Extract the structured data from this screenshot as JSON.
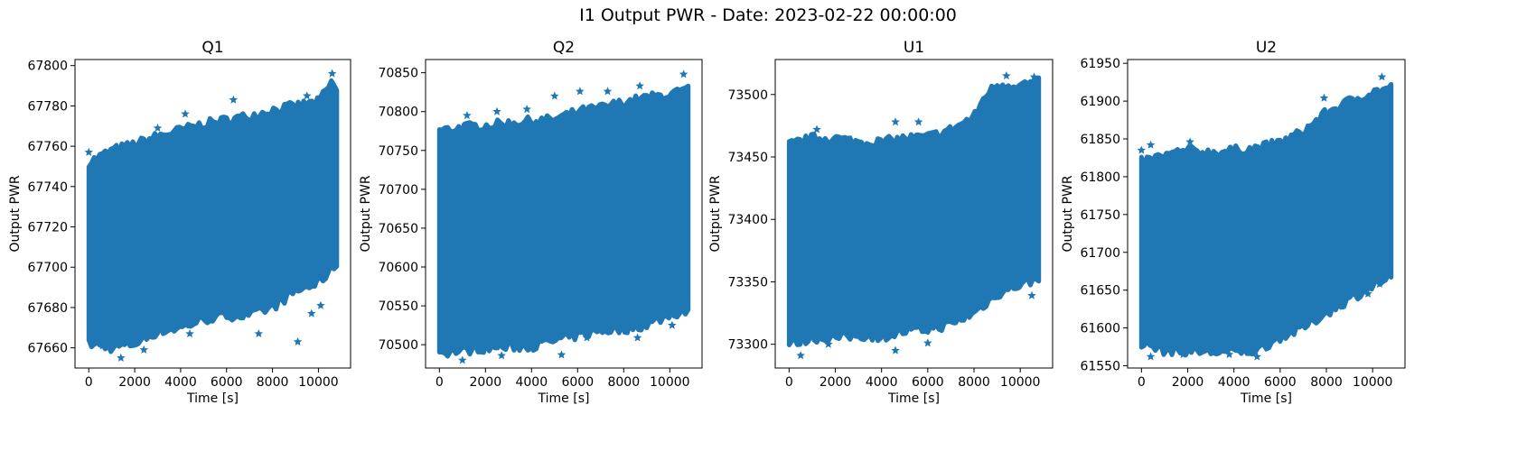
{
  "figure": {
    "title": "I1 Output PWR - Date: 2023-02-22 00:00:00"
  },
  "style": {
    "series_color": "#1f77b4",
    "marker": "star"
  },
  "chart_data": [
    {
      "type": "scatter",
      "title": "Q1",
      "xlabel": "Time [s]",
      "ylabel": "Output PWR",
      "xlim": [
        -600,
        11400
      ],
      "ylim": [
        67650,
        67803
      ],
      "xticks": [
        0,
        2000,
        4000,
        6000,
        8000,
        10000
      ],
      "yticks": [
        67660,
        67680,
        67700,
        67720,
        67740,
        67760,
        67780,
        67800
      ],
      "x_range": [
        0,
        10800
      ],
      "upper_envelope": [
        [
          0,
          67752
        ],
        [
          1000,
          67758
        ],
        [
          2000,
          67761
        ],
        [
          3000,
          67765
        ],
        [
          4000,
          67768
        ],
        [
          5000,
          67771
        ],
        [
          6000,
          67773
        ],
        [
          7000,
          67775
        ],
        [
          8000,
          67778
        ],
        [
          9000,
          67780
        ],
        [
          10000,
          67782
        ],
        [
          10600,
          67792
        ],
        [
          10800,
          67788
        ]
      ],
      "lower_envelope": [
        [
          0,
          67662
        ],
        [
          1000,
          67660
        ],
        [
          2000,
          67662
        ],
        [
          3000,
          67668
        ],
        [
          4000,
          67670
        ],
        [
          5000,
          67674
        ],
        [
          6000,
          67676
        ],
        [
          7000,
          67676
        ],
        [
          8000,
          67680
        ],
        [
          9000,
          67688
        ],
        [
          10000,
          67692
        ],
        [
          10800,
          67702
        ]
      ],
      "outliers": [
        [
          0,
          67757
        ],
        [
          600,
          67661
        ],
        [
          1400,
          67655
        ],
        [
          2400,
          67659
        ],
        [
          3000,
          67769
        ],
        [
          4200,
          67776
        ],
        [
          4400,
          67667
        ],
        [
          6300,
          67783
        ],
        [
          6000,
          67679
        ],
        [
          7400,
          67667
        ],
        [
          9100,
          67663
        ],
        [
          9700,
          67677
        ],
        [
          9500,
          67785
        ],
        [
          10100,
          67681
        ],
        [
          10600,
          67796
        ]
      ]
    },
    {
      "type": "scatter",
      "title": "Q2",
      "xlabel": "Time [s]",
      "ylabel": "Output PWR",
      "xlim": [
        -600,
        11400
      ],
      "ylim": [
        70470,
        70867
      ],
      "xticks": [
        0,
        2000,
        4000,
        6000,
        8000,
        10000
      ],
      "yticks": [
        70500,
        70550,
        70600,
        70650,
        70700,
        70750,
        70800,
        70850
      ],
      "x_range": [
        0,
        10800
      ],
      "upper_envelope": [
        [
          0,
          70775
        ],
        [
          1000,
          70780
        ],
        [
          2000,
          70782
        ],
        [
          3000,
          70785
        ],
        [
          4000,
          70788
        ],
        [
          5000,
          70790
        ],
        [
          6000,
          70800
        ],
        [
          7000,
          70805
        ],
        [
          8000,
          70812
        ],
        [
          9000,
          70818
        ],
        [
          10000,
          70822
        ],
        [
          10800,
          70828
        ]
      ],
      "lower_envelope": [
        [
          0,
          70490
        ],
        [
          1000,
          70492
        ],
        [
          2000,
          70496
        ],
        [
          3000,
          70497
        ],
        [
          4000,
          70498
        ],
        [
          5000,
          70505
        ],
        [
          6000,
          70512
        ],
        [
          7000,
          70518
        ],
        [
          8000,
          70520
        ],
        [
          9000,
          70526
        ],
        [
          10000,
          70538
        ],
        [
          10800,
          70545
        ]
      ],
      "outliers": [
        [
          1200,
          70795
        ],
        [
          2500,
          70800
        ],
        [
          3800,
          70803
        ],
        [
          5000,
          70820
        ],
        [
          6100,
          70826
        ],
        [
          7300,
          70826
        ],
        [
          8700,
          70833
        ],
        [
          10600,
          70848
        ],
        [
          1000,
          70480
        ],
        [
          2700,
          70486
        ],
        [
          5300,
          70487
        ],
        [
          6400,
          70509
        ],
        [
          8600,
          70509
        ],
        [
          10100,
          70525
        ]
      ]
    },
    {
      "type": "scatter",
      "title": "U1",
      "xlabel": "Time [s]",
      "ylabel": "Output PWR",
      "xlim": [
        -600,
        11400
      ],
      "ylim": [
        73281,
        73528
      ],
      "xticks": [
        0,
        2000,
        4000,
        6000,
        8000,
        10000
      ],
      "yticks": [
        73300,
        73350,
        73400,
        73450,
        73500
      ],
      "x_range": [
        0,
        10800
      ],
      "upper_envelope": [
        [
          0,
          73460
        ],
        [
          1000,
          73465
        ],
        [
          2000,
          73465
        ],
        [
          3000,
          73462
        ],
        [
          4000,
          73462
        ],
        [
          5000,
          73465
        ],
        [
          6000,
          73466
        ],
        [
          7000,
          73472
        ],
        [
          8000,
          73482
        ],
        [
          8500,
          73500
        ],
        [
          9000,
          73508
        ],
        [
          10000,
          73508
        ],
        [
          10800,
          73510
        ]
      ],
      "lower_envelope": [
        [
          0,
          73300
        ],
        [
          1000,
          73305
        ],
        [
          2000,
          73305
        ],
        [
          3000,
          73307
        ],
        [
          4000,
          73306
        ],
        [
          5000,
          73310
        ],
        [
          6000,
          73312
        ],
        [
          7000,
          73316
        ],
        [
          8000,
          73325
        ],
        [
          9000,
          73340
        ],
        [
          10000,
          73348
        ],
        [
          10800,
          73352
        ]
      ],
      "outliers": [
        [
          500,
          73291
        ],
        [
          1700,
          73300
        ],
        [
          4600,
          73295
        ],
        [
          6000,
          73301
        ],
        [
          10500,
          73339
        ],
        [
          1200,
          73472
        ],
        [
          4600,
          73478
        ],
        [
          5600,
          73478
        ],
        [
          9400,
          73515
        ],
        [
          10600,
          73514
        ]
      ]
    },
    {
      "type": "scatter",
      "title": "U2",
      "xlabel": "Time [s]",
      "ylabel": "Output PWR",
      "xlim": [
        -600,
        11400
      ],
      "ylim": [
        61547,
        61955
      ],
      "xticks": [
        0,
        2000,
        4000,
        6000,
        8000,
        10000
      ],
      "yticks": [
        61550,
        61600,
        61650,
        61700,
        61750,
        61800,
        61850,
        61900,
        61950
      ],
      "x_range": [
        0,
        10800
      ],
      "upper_envelope": [
        [
          0,
          61820
        ],
        [
          1000,
          61828
        ],
        [
          2000,
          61835
        ],
        [
          3000,
          61832
        ],
        [
          4000,
          61835
        ],
        [
          5000,
          61838
        ],
        [
          6000,
          61845
        ],
        [
          7000,
          61860
        ],
        [
          8000,
          61885
        ],
        [
          9000,
          61900
        ],
        [
          10000,
          61912
        ],
        [
          10800,
          61918
        ]
      ],
      "lower_envelope": [
        [
          0,
          61580
        ],
        [
          1000,
          61570
        ],
        [
          2000,
          61570
        ],
        [
          3000,
          61568
        ],
        [
          4000,
          61568
        ],
        [
          5000,
          61570
        ],
        [
          6000,
          61588
        ],
        [
          7000,
          61600
        ],
        [
          8000,
          61620
        ],
        [
          9000,
          61638
        ],
        [
          10000,
          61655
        ],
        [
          10800,
          61668
        ]
      ],
      "outliers": [
        [
          0,
          61835
        ],
        [
          400,
          61562
        ],
        [
          1800,
          61565
        ],
        [
          3800,
          61565
        ],
        [
          5000,
          61562
        ],
        [
          9800,
          61645
        ],
        [
          10300,
          61658
        ],
        [
          400,
          61842
        ],
        [
          2100,
          61846
        ],
        [
          7900,
          61904
        ],
        [
          10400,
          61932
        ]
      ]
    }
  ]
}
